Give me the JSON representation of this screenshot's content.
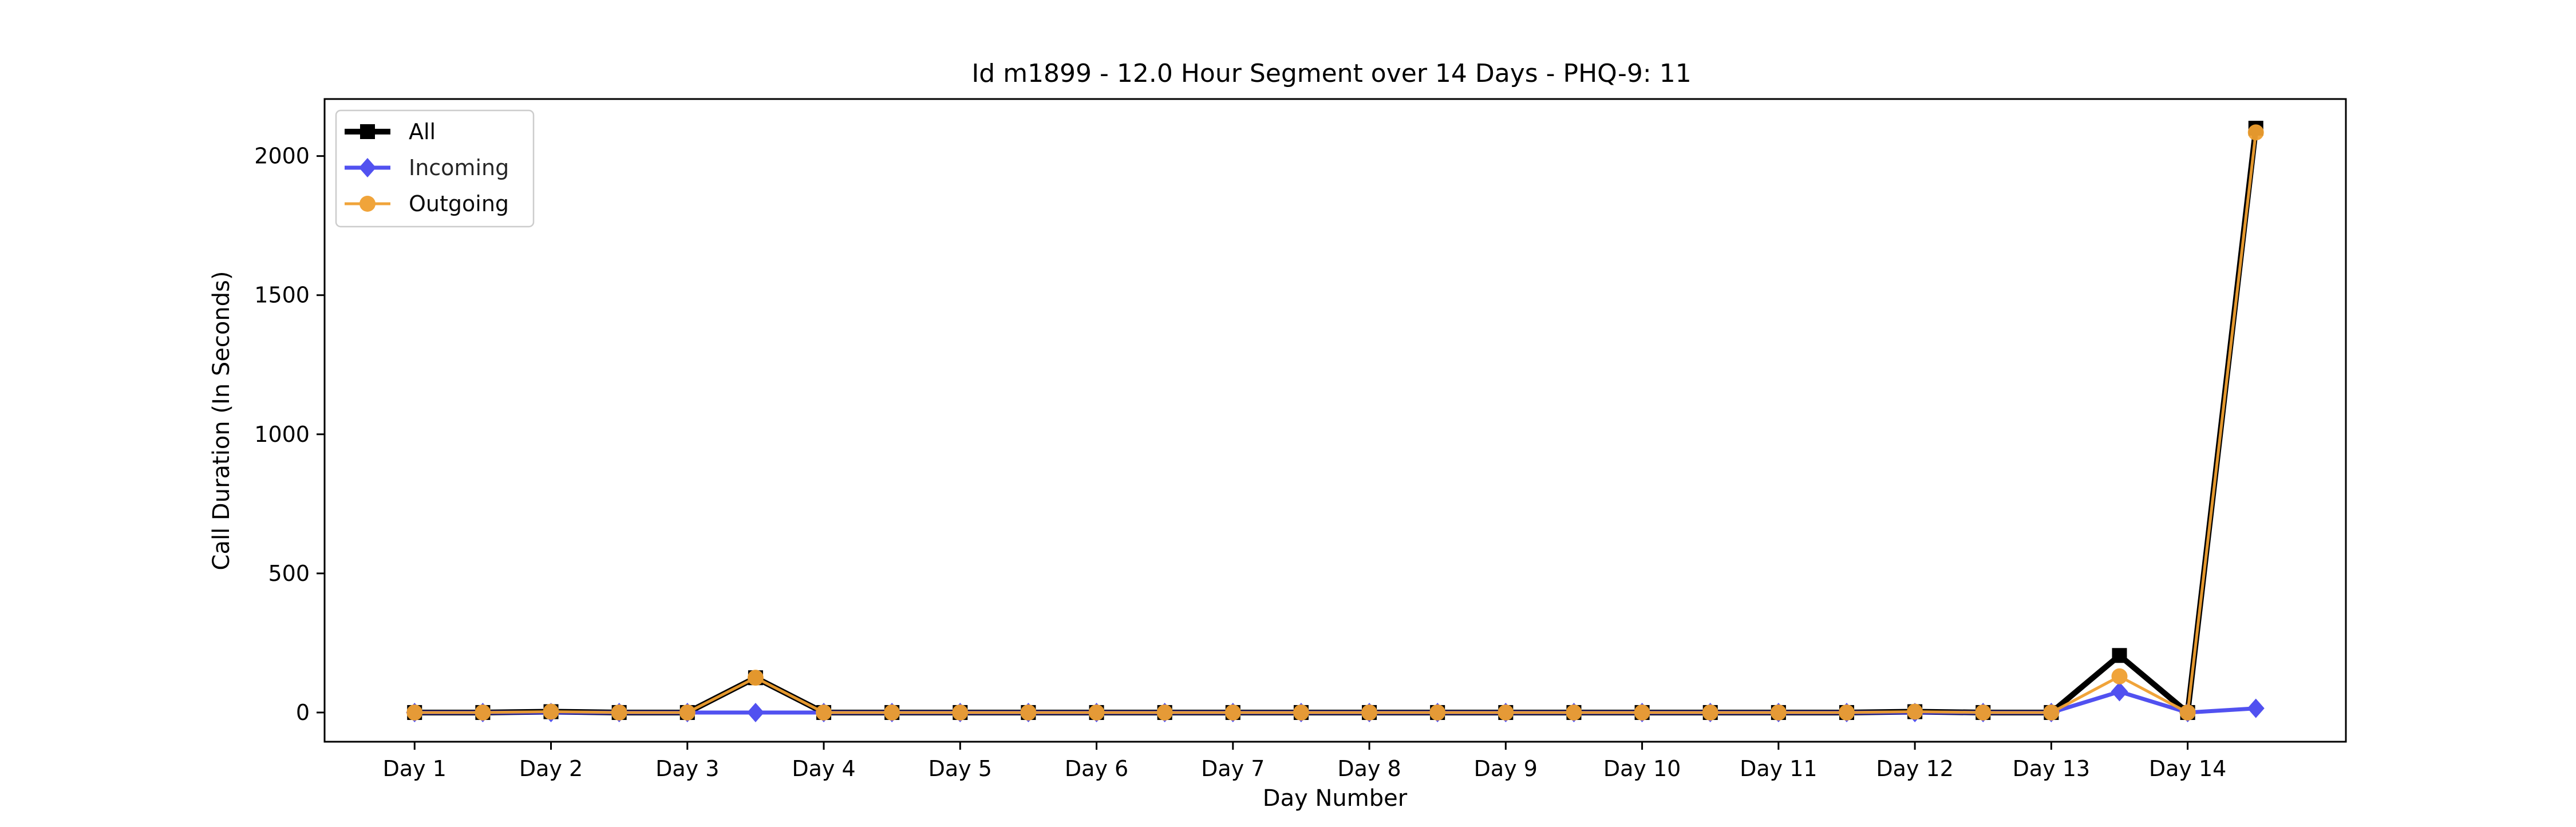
{
  "chart_data": {
    "type": "line",
    "title": "Id m1899 - 12.0 Hour Segment over 14 Days - PHQ-9: 11",
    "xlabel": "Day Number",
    "ylabel": "Call Duration (In Seconds)",
    "x": [
      1,
      1.5,
      2,
      2.5,
      3,
      3.5,
      4,
      4.5,
      5,
      5.5,
      6,
      6.5,
      7,
      7.5,
      8,
      8.5,
      9,
      9.5,
      10,
      10.5,
      11,
      11.5,
      12,
      12.5,
      13,
      13.5,
      14,
      14.5
    ],
    "xticks": [
      1,
      2,
      3,
      4,
      5,
      6,
      7,
      8,
      9,
      10,
      11,
      12,
      13,
      14
    ],
    "xtick_labels": [
      "Day 1",
      "Day 2",
      "Day 3",
      "Day 4",
      "Day 5",
      "Day 6",
      "Day 7",
      "Day 8",
      "Day 9",
      "Day 10",
      "Day 11",
      "Day 12",
      "Day 13",
      "Day 14"
    ],
    "xlim": [
      0.34,
      15.16
    ],
    "yticks": [
      0,
      500,
      1000,
      1500,
      2000
    ],
    "ylim": [
      -105,
      2205
    ],
    "grid": false,
    "legend_position": "top-left",
    "series": [
      {
        "name": "All",
        "color": "#000000",
        "marker": "square",
        "values": [
          0,
          0,
          3,
          0,
          0,
          125,
          0,
          0,
          0,
          0,
          0,
          0,
          0,
          0,
          0,
          0,
          0,
          0,
          0,
          0,
          0,
          0,
          3,
          0,
          0,
          205,
          0,
          2100
        ]
      },
      {
        "name": "Incoming",
        "color": "#3333ee",
        "marker": "diamond",
        "values": [
          0,
          0,
          0,
          0,
          0,
          0,
          0,
          0,
          0,
          0,
          0,
          0,
          0,
          0,
          0,
          0,
          0,
          0,
          0,
          0,
          0,
          0,
          0,
          0,
          0,
          75,
          0,
          15
        ]
      },
      {
        "name": "Outgoing",
        "color": "#f0a030",
        "marker": "circle",
        "values": [
          0,
          0,
          3,
          0,
          0,
          125,
          0,
          0,
          0,
          0,
          0,
          0,
          0,
          0,
          0,
          0,
          0,
          0,
          0,
          0,
          0,
          0,
          3,
          0,
          0,
          130,
          0,
          2085
        ]
      }
    ]
  }
}
